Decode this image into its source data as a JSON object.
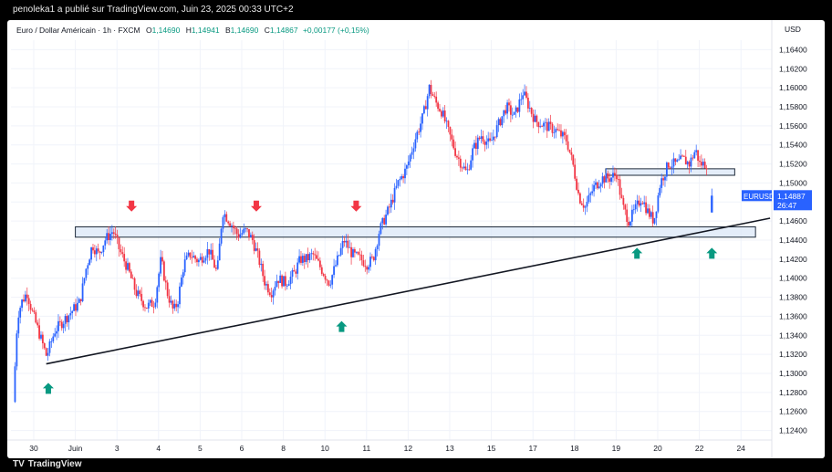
{
  "header": {
    "publisher": "penoleka1 a publié sur TradingView.com, Juin 23, 2025 00:33 UTC+2"
  },
  "legend": {
    "symbol": "Euro / Dollar Américain · 1h · FXCM",
    "open_label": "O",
    "open": "1,14690",
    "high_label": "H",
    "high": "1,14941",
    "low_label": "B",
    "low": "1,14690",
    "close_label": "C",
    "close": "1,14867",
    "change": "+0,00177 (+0,15%)"
  },
  "price_scale": {
    "currency": "USD"
  },
  "price_tag": {
    "symbol": "EURUSD",
    "price": "1,14887",
    "countdown": "26:47"
  },
  "footer": {
    "brand": "TradingView"
  },
  "colors": {
    "bull": "#2962ff",
    "bear": "#f23645",
    "support_arrow": "#089981",
    "resistance_arrow": "#f23645",
    "zone_fill": "#dbe7f7",
    "zone_border": "#1e2a3a"
  },
  "chart_data": {
    "type": "candlestick",
    "symbol": "EURUSD",
    "interval": "1h",
    "ylim": [
      1.123,
      1.165
    ],
    "y_ticks": [
      1.124,
      1.126,
      1.128,
      1.13,
      1.132,
      1.134,
      1.136,
      1.138,
      1.14,
      1.142,
      1.144,
      1.146,
      1.148,
      1.15,
      1.152,
      1.154,
      1.156,
      1.158,
      1.16,
      1.162,
      1.164
    ],
    "y_tick_labels": [
      "1,12400",
      "1,12600",
      "1,12800",
      "1,13000",
      "1,13200",
      "1,13400",
      "1,13600",
      "1,13800",
      "1,14000",
      "1,14200",
      "1,14400",
      "1,14600",
      "1,14800",
      "1,15000",
      "1,15200",
      "1,15400",
      "1,15600",
      "1,15800",
      "1,16000",
      "1,16200",
      "1,16400"
    ],
    "x_ticks": [
      {
        "label": "30",
        "day": 0
      },
      {
        "label": "Juin",
        "day": 1
      },
      {
        "label": "3",
        "day": 2
      },
      {
        "label": "4",
        "day": 3
      },
      {
        "label": "5",
        "day": 4
      },
      {
        "label": "6",
        "day": 5
      },
      {
        "label": "8",
        "day": 6
      },
      {
        "label": "10",
        "day": 7
      },
      {
        "label": "11",
        "day": 8
      },
      {
        "label": "12",
        "day": 9
      },
      {
        "label": "13",
        "day": 10
      },
      {
        "label": "15",
        "day": 11
      },
      {
        "label": "17",
        "day": 12
      },
      {
        "label": "18",
        "day": 13
      },
      {
        "label": "19",
        "day": 14
      },
      {
        "label": "20",
        "day": 15
      },
      {
        "label": "22",
        "day": 16
      },
      {
        "label": "24",
        "day": 17
      }
    ],
    "price_path": [
      [
        -0.45,
        1.127
      ],
      [
        -0.35,
        1.136
      ],
      [
        -0.25,
        1.1375
      ],
      [
        -0.12,
        1.1385
      ],
      [
        0.0,
        1.1365
      ],
      [
        0.15,
        1.1345
      ],
      [
        0.35,
        1.1318
      ],
      [
        0.55,
        1.1345
      ],
      [
        0.75,
        1.1355
      ],
      [
        0.95,
        1.1365
      ],
      [
        1.15,
        1.1375
      ],
      [
        1.3,
        1.141
      ],
      [
        1.45,
        1.1435
      ],
      [
        1.6,
        1.1425
      ],
      [
        1.75,
        1.144
      ],
      [
        1.95,
        1.145
      ],
      [
        2.1,
        1.143
      ],
      [
        2.3,
        1.141
      ],
      [
        2.5,
        1.1385
      ],
      [
        2.75,
        1.137
      ],
      [
        2.95,
        1.1375
      ],
      [
        3.1,
        1.142
      ],
      [
        3.25,
        1.1385
      ],
      [
        3.4,
        1.1365
      ],
      [
        3.5,
        1.1375
      ],
      [
        3.65,
        1.1415
      ],
      [
        3.8,
        1.1425
      ],
      [
        4.0,
        1.1418
      ],
      [
        4.25,
        1.143
      ],
      [
        4.45,
        1.1405
      ],
      [
        4.58,
        1.147
      ],
      [
        4.75,
        1.146
      ],
      [
        4.95,
        1.1445
      ],
      [
        5.15,
        1.145
      ],
      [
        5.3,
        1.144
      ],
      [
        5.45,
        1.142
      ],
      [
        5.6,
        1.1395
      ],
      [
        5.75,
        1.1385
      ],
      [
        5.9,
        1.14
      ],
      [
        6.1,
        1.1395
      ],
      [
        6.3,
        1.1405
      ],
      [
        6.45,
        1.142
      ],
      [
        6.6,
        1.142
      ],
      [
        6.75,
        1.1425
      ],
      [
        6.95,
        1.141
      ],
      [
        7.15,
        1.1395
      ],
      [
        7.35,
        1.142
      ],
      [
        7.5,
        1.144
      ],
      [
        7.7,
        1.1425
      ],
      [
        7.9,
        1.142
      ],
      [
        8.05,
        1.1415
      ],
      [
        8.2,
        1.142
      ],
      [
        8.35,
        1.145
      ],
      [
        8.6,
        1.1475
      ],
      [
        8.8,
        1.15
      ],
      [
        9.0,
        1.1515
      ],
      [
        9.2,
        1.1545
      ],
      [
        9.4,
        1.157
      ],
      [
        9.55,
        1.16
      ],
      [
        9.7,
        1.1585
      ],
      [
        9.85,
        1.1575
      ],
      [
        10.0,
        1.1555
      ],
      [
        10.2,
        1.153
      ],
      [
        10.45,
        1.151
      ],
      [
        10.6,
        1.1535
      ],
      [
        10.8,
        1.155
      ],
      [
        11.0,
        1.154
      ],
      [
        11.2,
        1.156
      ],
      [
        11.4,
        1.158
      ],
      [
        11.6,
        1.157
      ],
      [
        11.8,
        1.1595
      ],
      [
        11.95,
        1.158
      ],
      [
        12.1,
        1.1565
      ],
      [
        12.35,
        1.156
      ],
      [
        12.6,
        1.1555
      ],
      [
        12.85,
        1.1545
      ],
      [
        13.0,
        1.152
      ],
      [
        13.15,
        1.1485
      ],
      [
        13.3,
        1.1475
      ],
      [
        13.5,
        1.1495
      ],
      [
        13.7,
        1.1505
      ],
      [
        13.9,
        1.1505
      ],
      [
        14.05,
        1.151
      ],
      [
        14.2,
        1.1475
      ],
      [
        14.35,
        1.146
      ],
      [
        14.5,
        1.1472
      ],
      [
        14.65,
        1.1485
      ],
      [
        14.8,
        1.147
      ],
      [
        14.95,
        1.146
      ],
      [
        15.1,
        1.15
      ],
      [
        15.3,
        1.152
      ],
      [
        15.5,
        1.152
      ],
      [
        15.65,
        1.1525
      ],
      [
        15.8,
        1.152
      ],
      [
        15.95,
        1.1535
      ],
      [
        16.05,
        1.152
      ],
      [
        16.2,
        1.152
      ]
    ],
    "last_candles": [
      {
        "x": 16.3,
        "o": 1.1469,
        "h": 1.14941,
        "l": 1.1469,
        "c": 1.14867
      }
    ],
    "annotations": {
      "support_zone": {
        "x0": 1.0,
        "x1": 17.35,
        "y_low": 1.1445,
        "y_high": 1.1452
      },
      "resistance_zone": {
        "x0": 13.75,
        "x1": 16.85,
        "y_low": 1.151,
        "y_high": 1.1513
      },
      "trendline": {
        "x0": 0.3,
        "y0": 1.131,
        "x1": 17.7,
        "y1": 1.1463
      },
      "down_arrows": [
        [
          2.35,
          1.147
        ],
        [
          5.35,
          1.147
        ],
        [
          7.75,
          1.147
        ]
      ],
      "up_arrows": [
        [
          0.35,
          1.129
        ],
        [
          7.4,
          1.1355
        ],
        [
          14.5,
          1.1432
        ],
        [
          16.3,
          1.1432
        ]
      ]
    }
  }
}
